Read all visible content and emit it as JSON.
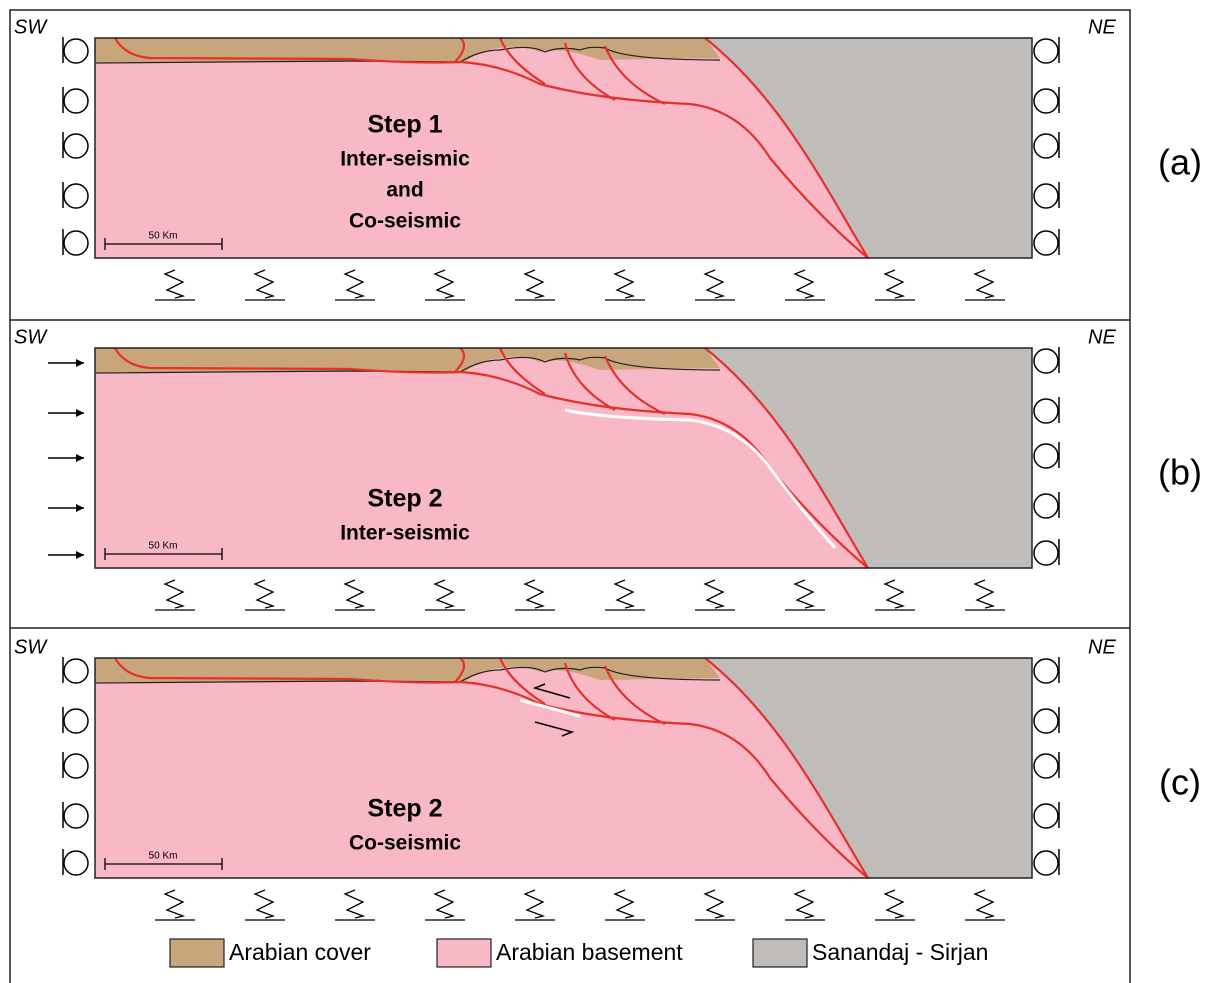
{
  "panels": [
    {
      "label": "(a)",
      "left": "SW",
      "right": "NE",
      "step": "Step 1",
      "phase": [
        "Inter-seismic",
        "and",
        "Co-seismic"
      ],
      "scale": "50 Km"
    },
    {
      "label": "(b)",
      "left": "SW",
      "right": "NE",
      "step": "Step 2",
      "phase": [
        "Inter-seismic"
      ],
      "scale": "50 Km"
    },
    {
      "label": "(c)",
      "left": "SW",
      "right": "NE",
      "step": "Step 2",
      "phase": [
        "Co-seismic"
      ],
      "scale": "50 Km"
    }
  ],
  "legend": [
    "Arabian cover",
    "Arabian basement",
    "Sanandaj - Sirjan"
  ]
}
